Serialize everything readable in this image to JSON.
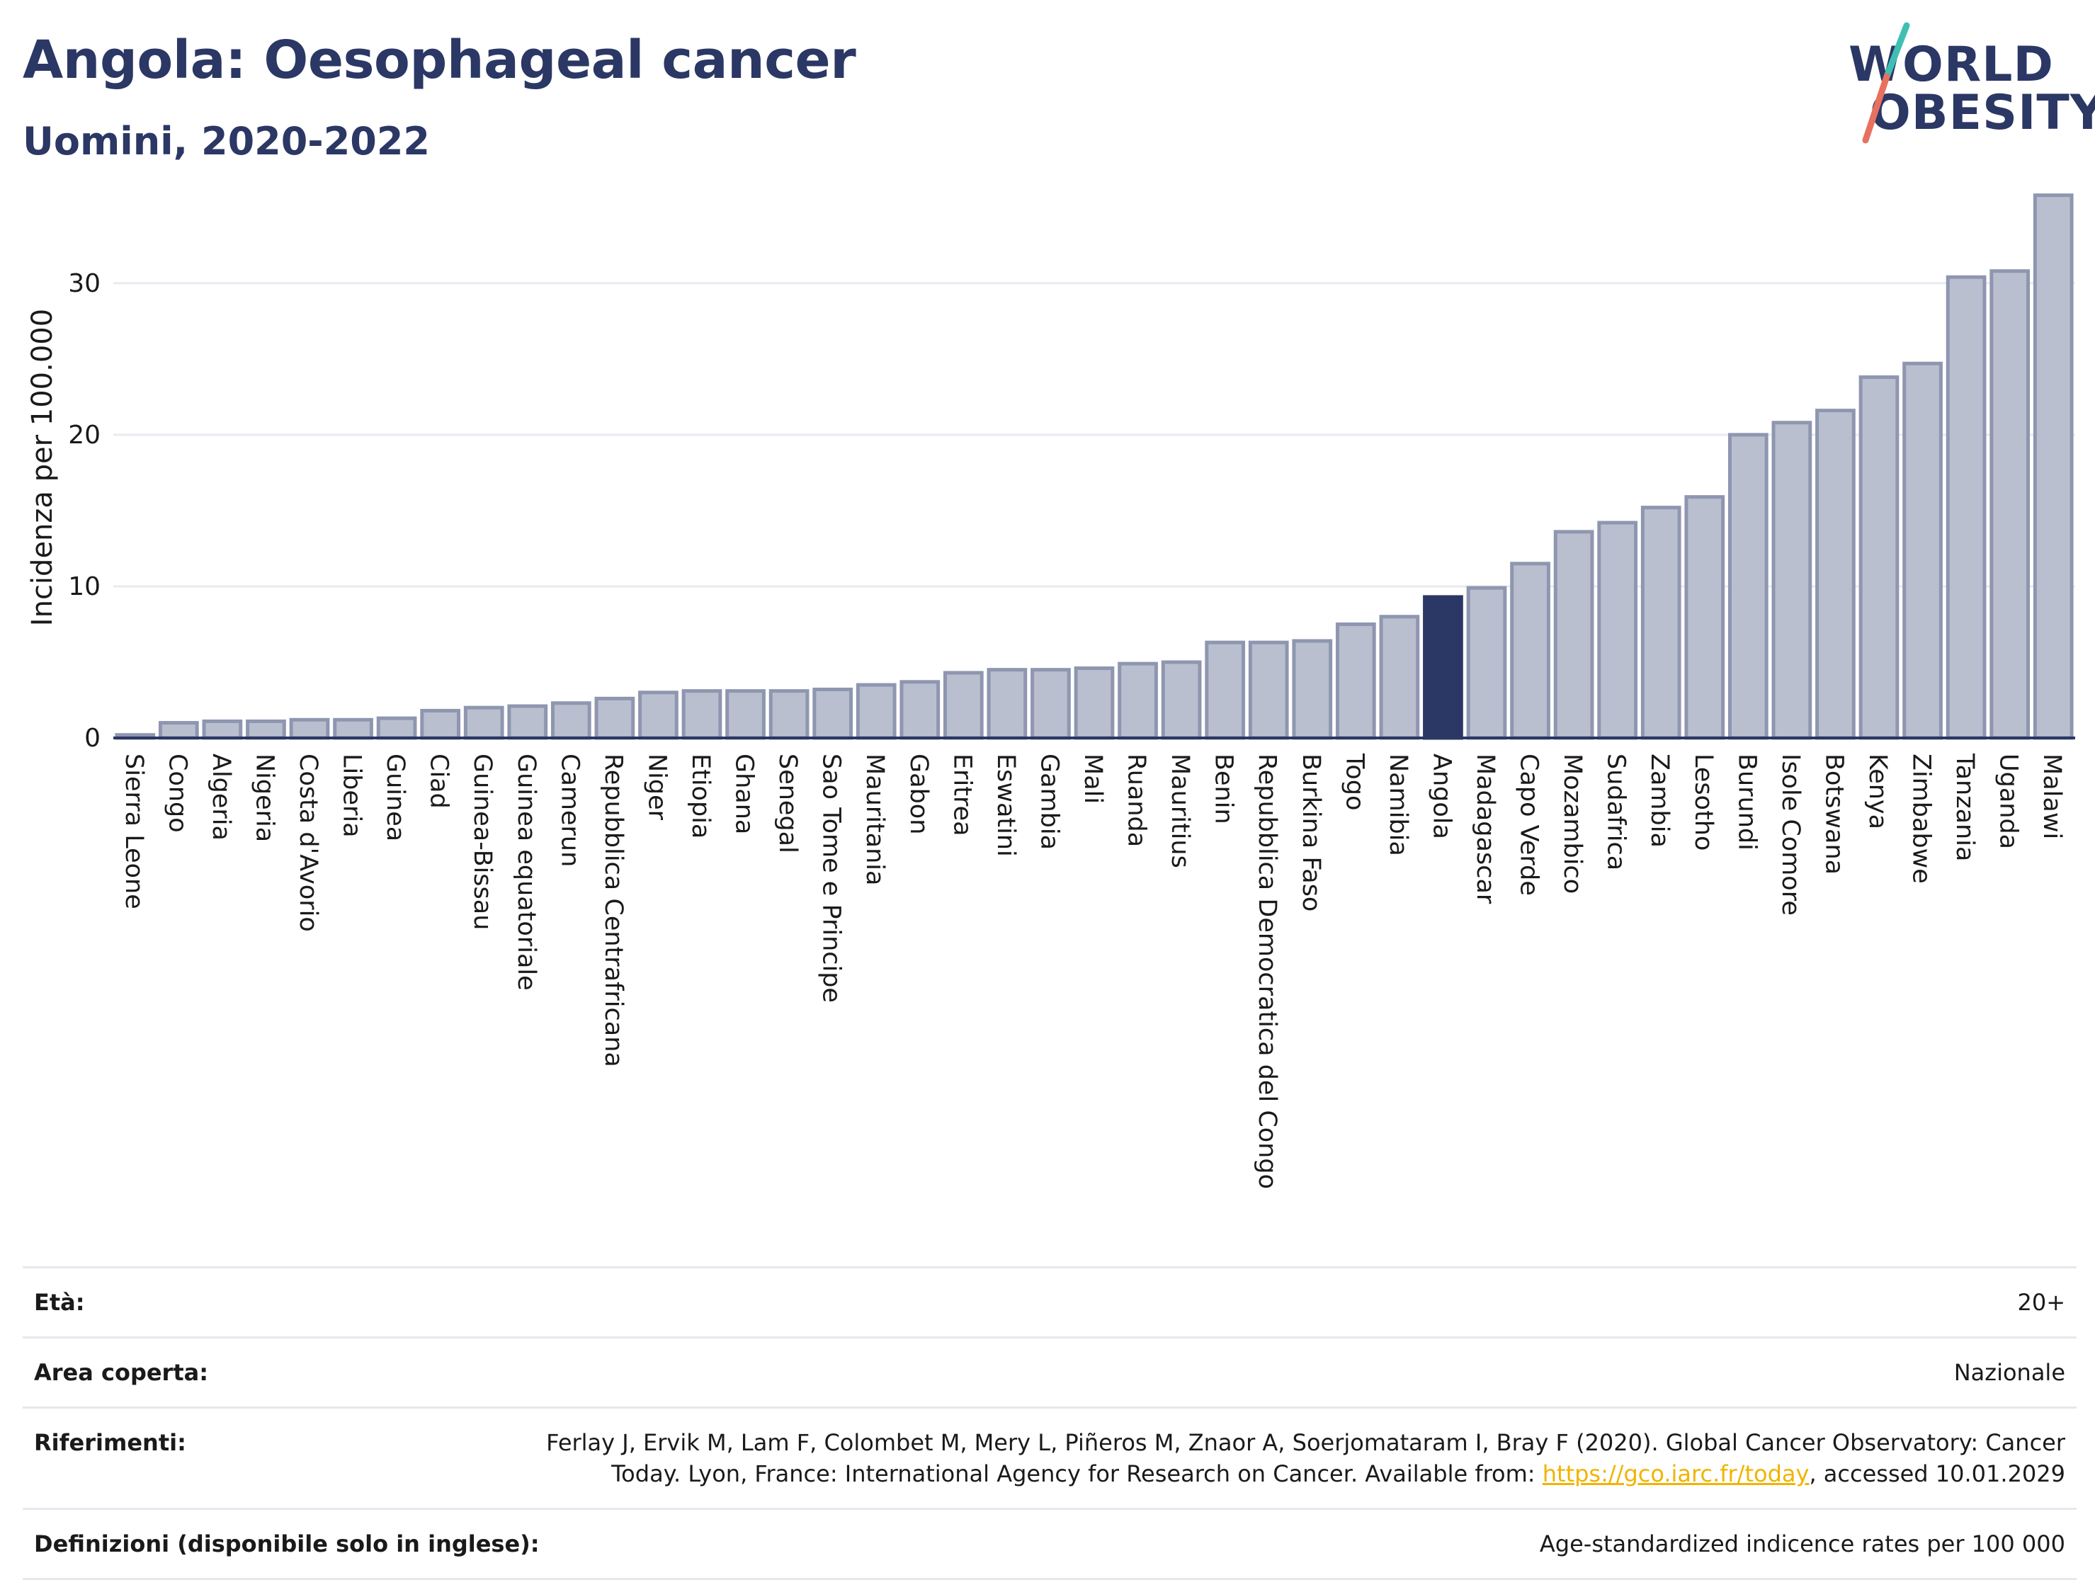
{
  "header": {
    "title": "Angola: Oesophageal cancer",
    "subtitle": "Uomini, 2020-2022"
  },
  "logo": {
    "line1": "WORLD",
    "line2": "OBESITY",
    "colors": {
      "text": "#2b3764",
      "slash_top": "#3fbfb4",
      "slash_bottom": "#e8705f"
    }
  },
  "chart_data": {
    "type": "bar",
    "ylabel": "Incidenza per 100.000",
    "xlabel": "",
    "ylim": [
      0,
      37
    ],
    "yticks": [
      0,
      10,
      20,
      30
    ],
    "grid": true,
    "highlight": "Angola",
    "colors": {
      "bar": "#b9bfce",
      "bar_border": "#8e96b0",
      "highlight": "#2b3764"
    },
    "categories": [
      "Sierra Leone",
      "Congo",
      "Algeria",
      "Nigeria",
      "Costa d'Avorio",
      "Liberia",
      "Guinea",
      "Ciad",
      "Guinea-Bissau",
      "Guinea equatoriale",
      "Camerun",
      "Repubblica Centrafricana",
      "Niger",
      "Etiopia",
      "Ghana",
      "Senegal",
      "Sao Tome e Principe",
      "Mauritania",
      "Gabon",
      "Eritrea",
      "Eswatini",
      "Gambia",
      "Mali",
      "Ruanda",
      "Mauritius",
      "Benin",
      "Repubblica Democratica del Congo",
      "Burkina Faso",
      "Togo",
      "Namibia",
      "Angola",
      "Madagascar",
      "Capo Verde",
      "Mozambico",
      "Sudafrica",
      "Zambia",
      "Lesotho",
      "Burundi",
      "Isole Comore",
      "Botswana",
      "Kenya",
      "Zimbabwe",
      "Tanzania",
      "Uganda",
      "Malawi"
    ],
    "values": [
      0.2,
      1.0,
      1.1,
      1.1,
      1.2,
      1.2,
      1.3,
      1.8,
      2.0,
      2.1,
      2.3,
      2.6,
      3.0,
      3.1,
      3.1,
      3.1,
      3.2,
      3.5,
      3.7,
      4.3,
      4.5,
      4.5,
      4.6,
      4.9,
      5.0,
      6.3,
      6.3,
      6.4,
      7.5,
      8.0,
      9.3,
      9.9,
      11.5,
      13.6,
      14.2,
      15.2,
      15.9,
      20.0,
      20.8,
      21.6,
      23.8,
      24.7,
      30.4,
      30.8,
      35.8
    ]
  },
  "info": {
    "rows": [
      {
        "label": "Età:",
        "value": "20+"
      },
      {
        "label": "Area coperta:",
        "value": "Nazionale"
      },
      {
        "label": "Riferimenti:",
        "value_line1": "Ferlay J, Ervik M, Lam F, Colombet M, Mery L, Piñeros M, Znaor A, Soerjomataram I, Bray F (2020). Global Cancer Observatory: Cancer",
        "value_line2_pre": "Today. Lyon, France: International Agency for Research on Cancer. Available from: ",
        "link": "https://gco.iarc.fr/today",
        "value_line2_post": ", accessed 10.01.2029"
      },
      {
        "label": "Definizioni (disponibile solo in inglese):",
        "value": "Age-standardized indicence rates per 100 000"
      }
    ]
  }
}
